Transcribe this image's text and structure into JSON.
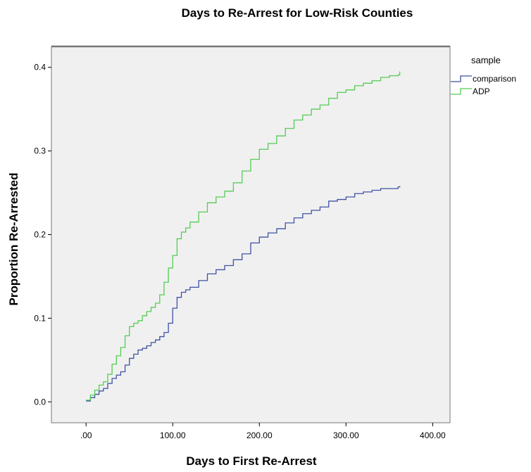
{
  "chart_data": {
    "type": "line",
    "title": "Days to Re-Arrest for Low-Risk Counties",
    "xlabel": "Days to First Re-Arrest",
    "ylabel": "Proportion Re-Arrested",
    "xlim": [
      -40,
      420
    ],
    "ylim": [
      -0.025,
      0.425
    ],
    "xticks": [
      0,
      100,
      200,
      300,
      400
    ],
    "xtick_labels": [
      ".00",
      "100.00",
      "200.00",
      "300.00",
      "400.00"
    ],
    "yticks": [
      0.0,
      0.1,
      0.2,
      0.3,
      0.4
    ],
    "ytick_labels": [
      "0.0",
      "0.1",
      "0.2",
      "0.3",
      "0.4"
    ],
    "grid": false,
    "plot_background": "#f0f0f0",
    "legend_title": "sample",
    "legend_position": "right",
    "series": [
      {
        "name": "comparison",
        "color": "#3f52a3",
        "points": [
          [
            0,
            0.001
          ],
          [
            5,
            0.005
          ],
          [
            10,
            0.009
          ],
          [
            15,
            0.013
          ],
          [
            20,
            0.016
          ],
          [
            25,
            0.022
          ],
          [
            30,
            0.028
          ],
          [
            35,
            0.032
          ],
          [
            40,
            0.036
          ],
          [
            45,
            0.044
          ],
          [
            50,
            0.052
          ],
          [
            55,
            0.057
          ],
          [
            60,
            0.062
          ],
          [
            65,
            0.064
          ],
          [
            70,
            0.067
          ],
          [
            75,
            0.071
          ],
          [
            80,
            0.074
          ],
          [
            85,
            0.078
          ],
          [
            90,
            0.083
          ],
          [
            95,
            0.094
          ],
          [
            100,
            0.112
          ],
          [
            105,
            0.125
          ],
          [
            110,
            0.131
          ],
          [
            115,
            0.134
          ],
          [
            120,
            0.137
          ],
          [
            130,
            0.145
          ],
          [
            140,
            0.153
          ],
          [
            150,
            0.158
          ],
          [
            160,
            0.163
          ],
          [
            170,
            0.17
          ],
          [
            180,
            0.177
          ],
          [
            190,
            0.19
          ],
          [
            200,
            0.197
          ],
          [
            210,
            0.202
          ],
          [
            220,
            0.207
          ],
          [
            230,
            0.214
          ],
          [
            240,
            0.22
          ],
          [
            250,
            0.225
          ],
          [
            260,
            0.229
          ],
          [
            270,
            0.233
          ],
          [
            280,
            0.24
          ],
          [
            290,
            0.242
          ],
          [
            300,
            0.245
          ],
          [
            310,
            0.249
          ],
          [
            320,
            0.251
          ],
          [
            330,
            0.253
          ],
          [
            340,
            0.255
          ],
          [
            350,
            0.255
          ],
          [
            360,
            0.257
          ],
          [
            362,
            0.258
          ]
        ]
      },
      {
        "name": "ADP",
        "color": "#55cc55",
        "points": [
          [
            0,
            0.002
          ],
          [
            5,
            0.008
          ],
          [
            10,
            0.014
          ],
          [
            15,
            0.02
          ],
          [
            20,
            0.024
          ],
          [
            25,
            0.033
          ],
          [
            30,
            0.045
          ],
          [
            35,
            0.055
          ],
          [
            40,
            0.065
          ],
          [
            45,
            0.079
          ],
          [
            50,
            0.09
          ],
          [
            55,
            0.094
          ],
          [
            60,
            0.097
          ],
          [
            65,
            0.103
          ],
          [
            70,
            0.108
          ],
          [
            75,
            0.113
          ],
          [
            80,
            0.118
          ],
          [
            85,
            0.128
          ],
          [
            90,
            0.143
          ],
          [
            95,
            0.16
          ],
          [
            100,
            0.175
          ],
          [
            105,
            0.195
          ],
          [
            110,
            0.203
          ],
          [
            115,
            0.208
          ],
          [
            120,
            0.215
          ],
          [
            130,
            0.227
          ],
          [
            140,
            0.238
          ],
          [
            150,
            0.245
          ],
          [
            160,
            0.252
          ],
          [
            170,
            0.262
          ],
          [
            180,
            0.276
          ],
          [
            190,
            0.29
          ],
          [
            200,
            0.302
          ],
          [
            210,
            0.309
          ],
          [
            220,
            0.318
          ],
          [
            230,
            0.327
          ],
          [
            240,
            0.337
          ],
          [
            250,
            0.343
          ],
          [
            260,
            0.35
          ],
          [
            270,
            0.355
          ],
          [
            280,
            0.363
          ],
          [
            290,
            0.37
          ],
          [
            300,
            0.373
          ],
          [
            310,
            0.378
          ],
          [
            320,
            0.381
          ],
          [
            330,
            0.384
          ],
          [
            340,
            0.388
          ],
          [
            350,
            0.39
          ],
          [
            360,
            0.391
          ],
          [
            362,
            0.395
          ]
        ]
      }
    ]
  }
}
